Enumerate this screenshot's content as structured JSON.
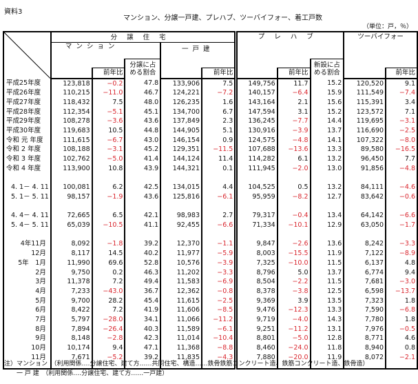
{
  "doc_id": "資料3",
  "title": "マンション、分譲一戸建、プレハブ、ツーバイフォー、着工戸数",
  "unit": "（単位：戸，％）",
  "headers": {
    "bunjo": "分譲住宅",
    "mansion": "マンション",
    "share_bunjo": "分譲に占める割合",
    "ikkodate": "一戸建",
    "prefab": "プレハブ",
    "share_new": "新設に占める割合",
    "twobyfour": "ツーバイフォー",
    "yoy": "前年比"
  },
  "groups": [
    {
      "type": "fiscal",
      "rows": [
        {
          "label": "平成25年度",
          "values": [
            "123,818",
            "−0.2",
            "47.8",
            "133,906",
            "7.5",
            "149,756",
            "11.7",
            "15.2",
            "120,520",
            "9.1"
          ]
        },
        {
          "label": "平成26年度",
          "values": [
            "110,215",
            "−11.0",
            "46.7",
            "124,221",
            "−7.2",
            "140,157",
            "−6.4",
            "15.9",
            "111,549",
            "−7.4"
          ]
        },
        {
          "label": "平成27年度",
          "values": [
            "118,432",
            "7.5",
            "48.0",
            "126,235",
            "1.6",
            "143,164",
            "2.1",
            "15.6",
            "115,391",
            "3.4"
          ]
        },
        {
          "label": "平成28年度",
          "values": [
            "112,354",
            "−5.1",
            "45.1",
            "134,700",
            "6.7",
            "147,594",
            "3.1",
            "15.2",
            "123,572",
            "7.1"
          ]
        },
        {
          "label": "平成29年度",
          "values": [
            "108,278",
            "−3.6",
            "43.6",
            "137,849",
            "2.3",
            "136,245",
            "−7.7",
            "14.4",
            "119,695",
            "−3.1"
          ]
        },
        {
          "label": "平成30年度",
          "values": [
            "119,683",
            "10.5",
            "44.8",
            "144,905",
            "5.1",
            "130,916",
            "−3.9",
            "13.7",
            "116,690",
            "−2.5"
          ]
        },
        {
          "label": "令和 元 年度",
          "values": [
            "111,615",
            "−6.7",
            "43.0",
            "146,154",
            "0.9",
            "124,575",
            "−4.8",
            "14.1",
            "107,322",
            "−8.0"
          ]
        },
        {
          "label": "令和 2 年度",
          "values": [
            "108,188",
            "−3.1",
            "45.2",
            "129,351",
            "−11.5",
            "107,688",
            "−13.6",
            "13.3",
            "89,580",
            "−16.5"
          ]
        },
        {
          "label": "令和 3 年度",
          "values": [
            "102,762",
            "−5.0",
            "41.4",
            "144,124",
            "11.4",
            "114,282",
            "6.1",
            "13.2",
            "96,450",
            "7.7"
          ]
        },
        {
          "label": "令和 4 年度",
          "values": [
            "113,900",
            "10.8",
            "43.9",
            "144,321",
            "0.1",
            "111,945",
            "−2.0",
            "13.0",
            "91,856",
            "−4.8"
          ]
        }
      ]
    },
    {
      "type": "period",
      "rows": [
        {
          "label": "4. 1－ 4. 11",
          "values": [
            "100,081",
            "6.2",
            "42.5",
            "134,015",
            "4.4",
            "104,525",
            "0.5",
            "13.2",
            "84,111",
            "−4.6"
          ]
        },
        {
          "label": "5. 1－ 5. 11",
          "values": [
            "98,157",
            "−1.9",
            "43.6",
            "125,816",
            "−6.1",
            "95,959",
            "−8.2",
            "12.7",
            "83,642",
            "−0.6"
          ]
        }
      ]
    },
    {
      "type": "period",
      "rows": [
        {
          "label": "4. 4－ 4. 11",
          "values": [
            "72,665",
            "6.5",
            "42.1",
            "98,983",
            "2.7",
            "79,317",
            "−0.4",
            "13.4",
            "64,142",
            "−6.6"
          ]
        },
        {
          "label": "5. 4－ 5. 11",
          "values": [
            "65,039",
            "−10.5",
            "41.1",
            "92,455",
            "−6.6",
            "71,334",
            "−10.1",
            "12.9",
            "63,050",
            "−1.7"
          ]
        }
      ]
    },
    {
      "type": "month",
      "rows": [
        {
          "label": "4年11月",
          "values": [
            "8,092",
            "−1.8",
            "39.2",
            "12,370",
            "−1.1",
            "9,847",
            "−2.6",
            "13.6",
            "8,242",
            "−3.3"
          ]
        },
        {
          "label": "12月",
          "values": [
            "8,117",
            "14.5",
            "40.2",
            "11,977",
            "−5.9",
            "8,003",
            "−15.5",
            "11.9",
            "7,122",
            "−8.9"
          ]
        },
        {
          "label": "5年　1月",
          "values": [
            "11,990",
            "69.6",
            "52.8",
            "10,576",
            "−3.9",
            "7,325",
            "−10.0",
            "11.5",
            "6,137",
            "4.8"
          ]
        },
        {
          "label": "2月",
          "values": [
            "9,750",
            "0.2",
            "46.3",
            "11,202",
            "−3.3",
            "8,796",
            "5.0",
            "13.7",
            "6,774",
            "9.4"
          ]
        },
        {
          "label": "3月",
          "values": [
            "11,378",
            "7.2",
            "49.4",
            "11,583",
            "−6.9",
            "8,504",
            "−2.2",
            "11.5",
            "7,681",
            "−3.0"
          ]
        },
        {
          "label": "4月",
          "values": [
            "7,233",
            "−43.0",
            "36.7",
            "12,362",
            "−0.8",
            "8,378",
            "−3.8",
            "12.5",
            "6,598",
            "−13.7"
          ]
        },
        {
          "label": "5月",
          "values": [
            "9,700",
            "28.2",
            "45.4",
            "11,615",
            "−2.5",
            "9,369",
            "3.9",
            "13.5",
            "7,323",
            "1.8"
          ]
        },
        {
          "label": "6月",
          "values": [
            "8,422",
            "7.2",
            "41.9",
            "11,606",
            "−8.5",
            "9,476",
            "−12.3",
            "13.3",
            "7,590",
            "−6.8"
          ]
        },
        {
          "label": "7月",
          "values": [
            "5,797",
            "−28.0",
            "34.1",
            "11,066",
            "−11.2",
            "9,719",
            "−4.0",
            "14.3",
            "7,780",
            "1.8"
          ]
        },
        {
          "label": "8月",
          "values": [
            "7,894",
            "−26.4",
            "40.3",
            "11,589",
            "−6.1",
            "9,251",
            "−11.2",
            "13.1",
            "7,976",
            "−0.5"
          ]
        },
        {
          "label": "9月",
          "values": [
            "8,148",
            "−2.8",
            "42.3",
            "11,014",
            "−10.4",
            "8,801",
            "−5.0",
            "12.8",
            "8,771",
            "4.6"
          ]
        },
        {
          "label": "10月",
          "values": [
            "10,174",
            "9.4",
            "47.1",
            "11,368",
            "−8.8",
            "8,460",
            "−24.0",
            "11.8",
            "8,940",
            "0.8"
          ]
        },
        {
          "label": "11月",
          "values": [
            "7,671",
            "−5.2",
            "39.2",
            "11,835",
            "−4.3",
            "7,880",
            "−20.0",
            "11.9",
            "8,072",
            "−2.1"
          ]
        }
      ]
    }
  ],
  "notes": [
    "注）マンション　（利用関係‥‥分譲住宅、建て方‥‥‥共同住宅、構造‥‥‥鉄骨鉄筋コンクリート造、鉄筋コンクリート造、鉄骨造）",
    "　　一 戸 建　（利用関係‥‥分譲住宅、建て方‥‥‥一戸建）"
  ],
  "colors": {
    "negative": "#d9262e",
    "border": "#000000"
  }
}
